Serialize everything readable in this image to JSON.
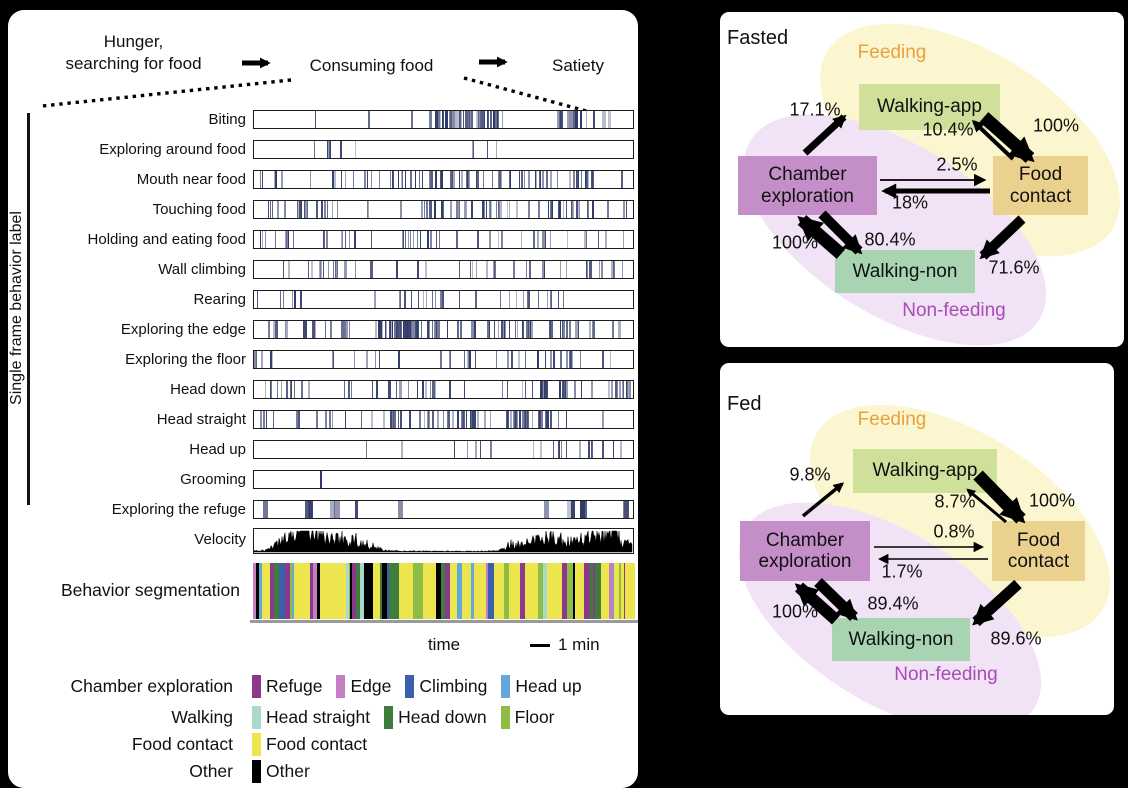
{
  "flow": {
    "stage1_line1": "Hunger,",
    "stage1_line2": "searching for food",
    "stage2": "Consuming food",
    "stage3": "Satiety"
  },
  "left_panel": {
    "axis_label": "Single frame behavior label",
    "tick_color": "#2f3a68",
    "behavior_rows": [
      {
        "label": "Biting",
        "n": 55,
        "clusters": 5,
        "seed": 11,
        "wmin": 1,
        "wmax": 3.5
      },
      {
        "label": "Exploring around food",
        "n": 13,
        "clusters": 4,
        "seed": 22,
        "wmin": 0.8,
        "wmax": 2
      },
      {
        "label": "Mouth near food",
        "n": 85,
        "clusters": 7,
        "seed": 33,
        "wmin": 0.8,
        "wmax": 2.2
      },
      {
        "label": "Touching food",
        "n": 80,
        "clusters": 7,
        "seed": 44,
        "wmin": 0.8,
        "wmax": 2.4
      },
      {
        "label": "Holding and eating food",
        "n": 48,
        "clusters": 6,
        "seed": 55,
        "wmin": 0.8,
        "wmax": 2.2
      },
      {
        "label": "Wall climbing",
        "n": 42,
        "clusters": 6,
        "seed": 66,
        "wmin": 0.9,
        "wmax": 2.4
      },
      {
        "label": "Rearing",
        "n": 32,
        "clusters": 6,
        "seed": 77,
        "wmin": 0.8,
        "wmax": 2
      },
      {
        "label": "Exploring the edge",
        "n": 100,
        "clusters": 7,
        "seed": 88,
        "wmin": 1,
        "wmax": 3
      },
      {
        "label": "Exploring the floor",
        "n": 42,
        "clusters": 7,
        "seed": 99,
        "wmin": 0.9,
        "wmax": 2.2
      },
      {
        "label": "Head down",
        "n": 68,
        "clusters": 7,
        "seed": 111,
        "wmin": 0.9,
        "wmax": 2.4
      },
      {
        "label": "Head straight",
        "n": 72,
        "clusters": 7,
        "seed": 122,
        "wmin": 0.9,
        "wmax": 2.4
      },
      {
        "label": "Head up",
        "n": 22,
        "clusters": 5,
        "seed": 133,
        "wmin": 0.8,
        "wmax": 2
      },
      {
        "label": "Grooming",
        "n": 1,
        "clusters": 1,
        "seed": 144,
        "wmin": 1.5,
        "wmax": 1.5,
        "positions": [
          0.175
        ]
      },
      {
        "label": "Exploring the refuge",
        "n": 15,
        "clusters": 8,
        "seed": 155,
        "wmin": 3,
        "wmax": 7
      }
    ],
    "velocity": {
      "label": "Velocity",
      "seed": 777
    },
    "segmentation": {
      "label": "Behavior segmentation",
      "seed": 4242,
      "palette": [
        {
          "name": "Food contact",
          "color": "#ece54e",
          "weight": 0.3,
          "wide": true
        },
        {
          "name": "Refuge",
          "color": "#8b3a8b",
          "weight": 0.24
        },
        {
          "name": "Edge",
          "color": "#c47fc2",
          "weight": 0.04
        },
        {
          "name": "Climbing",
          "color": "#3a5fae",
          "weight": 0.06
        },
        {
          "name": "Head up",
          "color": "#62a8dc",
          "weight": 0.04
        },
        {
          "name": "Head straight",
          "color": "#a9d9ce",
          "weight": 0.05
        },
        {
          "name": "Head down",
          "color": "#3e7d3c",
          "weight": 0.1
        },
        {
          "name": "Floor",
          "color": "#8fbc45",
          "weight": 0.07
        },
        {
          "name": "Other",
          "color": "#000000",
          "weight": 0.1
        }
      ]
    },
    "time_label": "time",
    "scale_label": "1 min",
    "legend_rows": [
      {
        "category": "Chamber exploration",
        "items": [
          {
            "label": "Refuge",
            "color": "#8b3a8b"
          },
          {
            "label": "Edge",
            "color": "#c47fc2"
          },
          {
            "label": "Climbing",
            "color": "#3a5fae"
          },
          {
            "label": "Head up",
            "color": "#62a8dc"
          }
        ]
      },
      {
        "category": "Walking",
        "items": [
          {
            "label": "Head straight",
            "color": "#a9d9ce"
          },
          {
            "label": "Head down",
            "color": "#3e7d3c"
          },
          {
            "label": "Floor",
            "color": "#8fbc45"
          }
        ]
      },
      {
        "category": "Food contact",
        "items": [
          {
            "label": "Food contact",
            "color": "#ece54e"
          }
        ]
      },
      {
        "category": "Other",
        "items": [
          {
            "label": "Other",
            "color": "#000000"
          }
        ]
      }
    ]
  },
  "diagrams": [
    {
      "title": "Fasted",
      "zones": {
        "feeding": {
          "label": "Feeding",
          "text_color": "#e8a33d",
          "fill": "#fbf5d0"
        },
        "nonfeeding": {
          "label": "Non-feeding",
          "text_color": "#a84cb8",
          "fill": "#f1e3f5"
        }
      },
      "nodes": {
        "walking_app": {
          "label": "Walking-app",
          "color": "#cfe09b"
        },
        "chamber": {
          "label": "Chamber exploration",
          "color": "#c48fc8"
        },
        "food": {
          "label": "Food contact",
          "color": "#ebd18e"
        },
        "walking_non": {
          "label": "Walking-non",
          "color": "#a9d4b2"
        }
      },
      "transitions": [
        {
          "from": "Chamber exploration",
          "to": "Walking-app",
          "pct": "17.1%"
        },
        {
          "from": "Food contact",
          "to": "Walking-app",
          "pct": "10.4%"
        },
        {
          "from": "Walking-app",
          "to": "Food contact",
          "pct": "100%"
        },
        {
          "from": "Chamber exploration",
          "to": "Food contact",
          "pct": "2.5%"
        },
        {
          "from": "Food contact",
          "to": "Chamber exploration",
          "pct": "18%"
        },
        {
          "from": "Walking-non",
          "to": "Chamber exploration",
          "pct": "100%"
        },
        {
          "from": "Chamber exploration",
          "to": "Walking-non",
          "pct": "80.4%"
        },
        {
          "from": "Food contact",
          "to": "Walking-non",
          "pct": "71.6%"
        }
      ]
    },
    {
      "title": "Fed",
      "zones": {
        "feeding": {
          "label": "Feeding",
          "text_color": "#e8a33d",
          "fill": "#fbf5d0"
        },
        "nonfeeding": {
          "label": "Non-feeding",
          "text_color": "#a84cb8",
          "fill": "#f1e3f5"
        }
      },
      "nodes": {
        "walking_app": {
          "label": "Walking-app",
          "color": "#cfe09b"
        },
        "chamber": {
          "label": "Chamber exploration",
          "color": "#c48fc8"
        },
        "food": {
          "label": "Food contact",
          "color": "#ebd18e"
        },
        "walking_non": {
          "label": "Walking-non",
          "color": "#a9d4b2"
        }
      },
      "transitions": [
        {
          "from": "Chamber exploration",
          "to": "Walking-app",
          "pct": "9.8%"
        },
        {
          "from": "Food contact",
          "to": "Walking-app",
          "pct": "8.7%"
        },
        {
          "from": "Walking-app",
          "to": "Food contact",
          "pct": "100%"
        },
        {
          "from": "Chamber exploration",
          "to": "Food contact",
          "pct": "0.8%"
        },
        {
          "from": "Food contact",
          "to": "Chamber exploration",
          "pct": "1.7%"
        },
        {
          "from": "Walking-non",
          "to": "Chamber exploration",
          "pct": "100%"
        },
        {
          "from": "Chamber exploration",
          "to": "Walking-non",
          "pct": "89.4%"
        },
        {
          "from": "Food contact",
          "to": "Walking-non",
          "pct": "89.6%"
        }
      ]
    }
  ]
}
